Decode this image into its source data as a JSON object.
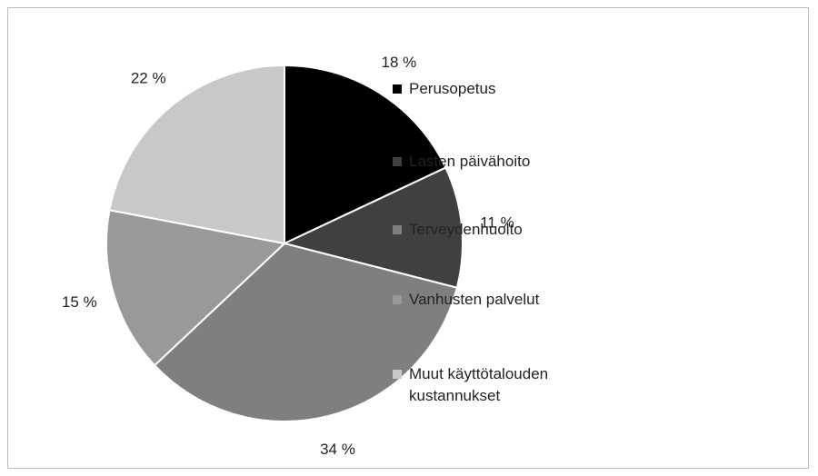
{
  "chart_data": {
    "type": "pie",
    "categories": [
      "Perusopetus",
      "Lasten päivähoito",
      "Terveydenhuolto",
      "Vanhusten palvelut",
      "Muut käyttötalouden kustannukset"
    ],
    "values": [
      18,
      11,
      34,
      15,
      22
    ],
    "value_labels": [
      "18 %",
      "11 %",
      "34 %",
      "15 %",
      "22 %"
    ],
    "colors": [
      "#000000",
      "#404040",
      "#7f7f7f",
      "#999999",
      "#c8c8c8"
    ],
    "legend": "right"
  }
}
